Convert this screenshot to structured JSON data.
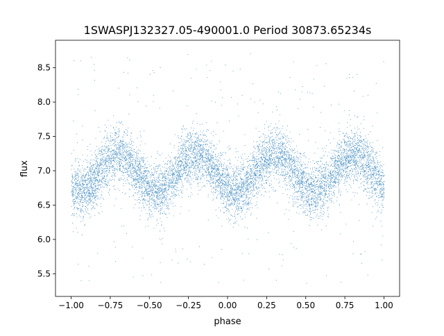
{
  "chart_data": {
    "type": "scatter",
    "title": "1SWASPJ132327.05-490001.0 Period 30873.65234s",
    "xlabel": "phase",
    "ylabel": "flux",
    "xlim": [
      -1.1,
      1.1
    ],
    "ylim": [
      5.17,
      8.9
    ],
    "xticks": [
      -1.0,
      -0.75,
      -0.5,
      -0.25,
      0.0,
      0.25,
      0.5,
      0.75,
      1.0
    ],
    "xtick_labels": [
      "−1.00",
      "−0.75",
      "−0.50",
      "−0.25",
      "0.00",
      "0.25",
      "0.50",
      "0.75",
      "1.00"
    ],
    "yticks": [
      5.5,
      6.0,
      6.5,
      7.0,
      7.5,
      8.0,
      8.5
    ],
    "ytick_labels": [
      "5.5",
      "6.0",
      "6.5",
      "7.0",
      "7.5",
      "8.0",
      "8.5"
    ],
    "grid": false,
    "series": [
      {
        "name": "flux",
        "color": "#1f77b4",
        "x_range": [
          -1.0,
          1.0
        ],
        "model": {
          "mean": 6.97,
          "amplitude": 0.27,
          "cycles_per_unit_phase": 2,
          "peak_phase": 0.3,
          "noise_sd": 0.17,
          "outlier_range": [
            5.35,
            8.72
          ]
        },
        "n_points": 9000
      }
    ]
  }
}
